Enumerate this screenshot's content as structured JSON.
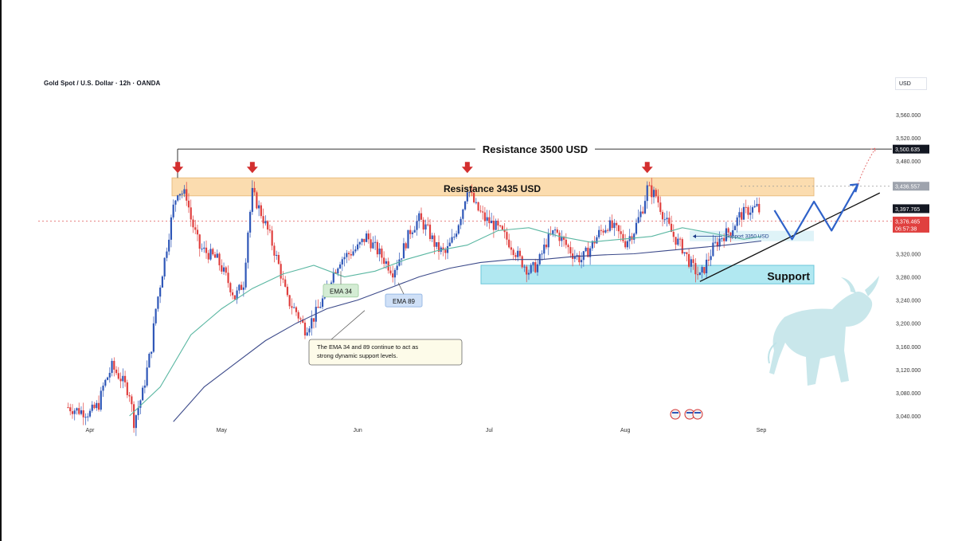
{
  "header": {
    "title": "Gold Spot / U.S. Dollar · 12h · OANDA",
    "currency": "USD"
  },
  "chart_data": {
    "type": "candlestick",
    "ylim": [
      3025,
      3600
    ],
    "y_ticks": [
      3040,
      3080,
      3120,
      3160,
      3200,
      3240,
      3280,
      3320,
      3480,
      3520,
      3560
    ],
    "y_tick_labels": [
      "3,040.000",
      "3,080.000",
      "3,120.000",
      "3,160.000",
      "3,200.000",
      "3,240.000",
      "3,280.000",
      "3,320.000",
      "3,480.000",
      "3,520.000",
      "3,560.000"
    ],
    "x_labels": [
      "Apr",
      "May",
      "Jun",
      "Jul",
      "Aug",
      "Sep"
    ],
    "x_label_dates": [
      "2025-04-01",
      "2025-05-01",
      "2025-06-01",
      "2025-07-01",
      "2025-08-01",
      "2025-09-01"
    ],
    "price_flags": [
      {
        "label": "3,500.635",
        "value": 3500.635,
        "style": "dark"
      },
      {
        "label": "3,436.557",
        "value": 3436.557,
        "style": "gray"
      },
      {
        "label": "3,397.765",
        "value": 3397.765,
        "style": "dark"
      },
      {
        "label": "3,376.465",
        "sub": "06:57:38",
        "value": 3376.465,
        "style": "red"
      }
    ],
    "close_path": [
      [
        "2025-03-27",
        3055
      ],
      [
        "2025-03-29",
        3050
      ],
      [
        "2025-04-01",
        3045
      ],
      [
        "2025-04-03",
        3060
      ],
      [
        "2025-04-04",
        3090
      ],
      [
        "2025-04-06",
        3125
      ],
      [
        "2025-04-08",
        3105
      ],
      [
        "2025-04-10",
        3080
      ],
      [
        "2025-04-11",
        3030
      ],
      [
        "2025-04-13",
        3080
      ],
      [
        "2025-04-15",
        3160
      ],
      [
        "2025-04-16",
        3225
      ],
      [
        "2025-04-18",
        3310
      ],
      [
        "2025-04-20",
        3400
      ],
      [
        "2025-04-21",
        3430
      ],
      [
        "2025-04-23",
        3420
      ],
      [
        "2025-04-24",
        3380
      ],
      [
        "2025-04-26",
        3330
      ],
      [
        "2025-04-28",
        3320
      ],
      [
        "2025-04-30",
        3310
      ],
      [
        "2025-05-02",
        3280
      ],
      [
        "2025-05-04",
        3245
      ],
      [
        "2025-05-06",
        3270
      ],
      [
        "2025-05-07",
        3360
      ],
      [
        "2025-05-08",
        3425
      ],
      [
        "2025-05-10",
        3390
      ],
      [
        "2025-05-12",
        3350
      ],
      [
        "2025-05-14",
        3300
      ],
      [
        "2025-05-16",
        3240
      ],
      [
        "2025-05-18",
        3220
      ],
      [
        "2025-05-20",
        3190
      ],
      [
        "2025-05-22",
        3210
      ],
      [
        "2025-05-24",
        3240
      ],
      [
        "2025-05-26",
        3280
      ],
      [
        "2025-05-28",
        3310
      ],
      [
        "2025-05-30",
        3320
      ],
      [
        "2025-06-01",
        3330
      ],
      [
        "2025-06-03",
        3350
      ],
      [
        "2025-06-05",
        3330
      ],
      [
        "2025-06-07",
        3310
      ],
      [
        "2025-06-09",
        3290
      ],
      [
        "2025-06-11",
        3320
      ],
      [
        "2025-06-13",
        3360
      ],
      [
        "2025-06-15",
        3380
      ],
      [
        "2025-06-17",
        3360
      ],
      [
        "2025-06-19",
        3330
      ],
      [
        "2025-06-21",
        3320
      ],
      [
        "2025-06-23",
        3350
      ],
      [
        "2025-06-25",
        3400
      ],
      [
        "2025-06-26",
        3435
      ],
      [
        "2025-06-28",
        3400
      ],
      [
        "2025-06-30",
        3380
      ],
      [
        "2025-07-02",
        3370
      ],
      [
        "2025-07-04",
        3355
      ],
      [
        "2025-07-06",
        3335
      ],
      [
        "2025-07-08",
        3310
      ],
      [
        "2025-07-10",
        3290
      ],
      [
        "2025-07-12",
        3300
      ],
      [
        "2025-07-14",
        3340
      ],
      [
        "2025-07-16",
        3360
      ],
      [
        "2025-07-18",
        3340
      ],
      [
        "2025-07-20",
        3320
      ],
      [
        "2025-07-22",
        3310
      ],
      [
        "2025-07-24",
        3330
      ],
      [
        "2025-07-26",
        3355
      ],
      [
        "2025-07-28",
        3370
      ],
      [
        "2025-07-30",
        3360
      ],
      [
        "2025-08-01",
        3340
      ],
      [
        "2025-08-03",
        3360
      ],
      [
        "2025-08-05",
        3400
      ],
      [
        "2025-08-06",
        3433
      ],
      [
        "2025-08-08",
        3420
      ],
      [
        "2025-08-10",
        3380
      ],
      [
        "2025-08-12",
        3350
      ],
      [
        "2025-08-14",
        3330
      ],
      [
        "2025-08-16",
        3300
      ],
      [
        "2025-08-18",
        3280
      ],
      [
        "2025-08-19",
        3295
      ],
      [
        "2025-08-21",
        3330
      ],
      [
        "2025-08-23",
        3350
      ],
      [
        "2025-08-25",
        3360
      ],
      [
        "2025-08-27",
        3385
      ],
      [
        "2025-08-29",
        3395
      ],
      [
        "2025-08-31",
        3400
      ],
      [
        "2025-09-01",
        3388
      ]
    ],
    "ema34": [
      [
        "2025-04-10",
        3040
      ],
      [
        "2025-04-17",
        3090
      ],
      [
        "2025-04-24",
        3180
      ],
      [
        "2025-05-01",
        3225
      ],
      [
        "2025-05-08",
        3260
      ],
      [
        "2025-05-15",
        3285
      ],
      [
        "2025-05-22",
        3300
      ],
      [
        "2025-05-29",
        3280
      ],
      [
        "2025-06-05",
        3290
      ],
      [
        "2025-06-12",
        3310
      ],
      [
        "2025-06-19",
        3325
      ],
      [
        "2025-06-26",
        3335
      ],
      [
        "2025-07-03",
        3360
      ],
      [
        "2025-07-10",
        3365
      ],
      [
        "2025-07-17",
        3350
      ],
      [
        "2025-07-24",
        3340
      ],
      [
        "2025-07-31",
        3345
      ],
      [
        "2025-08-07",
        3350
      ],
      [
        "2025-08-14",
        3365
      ],
      [
        "2025-08-21",
        3355
      ],
      [
        "2025-08-28",
        3345
      ],
      [
        "2025-09-01",
        3350
      ]
    ],
    "ema89": [
      [
        "2025-04-20",
        3030
      ],
      [
        "2025-04-27",
        3090
      ],
      [
        "2025-05-04",
        3130
      ],
      [
        "2025-05-11",
        3170
      ],
      [
        "2025-05-18",
        3200
      ],
      [
        "2025-05-25",
        3225
      ],
      [
        "2025-06-01",
        3240
      ],
      [
        "2025-06-08",
        3260
      ],
      [
        "2025-06-15",
        3280
      ],
      [
        "2025-06-22",
        3295
      ],
      [
        "2025-06-29",
        3305
      ],
      [
        "2025-07-06",
        3310
      ],
      [
        "2025-07-13",
        3310
      ],
      [
        "2025-07-20",
        3315
      ],
      [
        "2025-07-27",
        3318
      ],
      [
        "2025-08-03",
        3320
      ],
      [
        "2025-08-10",
        3325
      ],
      [
        "2025-08-17",
        3330
      ],
      [
        "2025-08-24",
        3335
      ],
      [
        "2025-09-01",
        3342
      ]
    ],
    "levels": {
      "resistance_3500": {
        "value": 3500.635,
        "label": "Resistance 3500 USD"
      },
      "resistance_band": {
        "low": 3420,
        "high": 3451,
        "label": "Resistance 3435 USD"
      },
      "support_band": {
        "low": 3268,
        "high": 3300,
        "label": "Support"
      },
      "support_3350": {
        "value": 3350,
        "label": "Support 3350 USD"
      }
    },
    "annotations": {
      "ema34_label": "EMA 34",
      "ema89_label": "EMA 89",
      "note": "The EMA 34 and 89 continue to act as strong dynamic support levels."
    },
    "arrows_down_dates": [
      "2025-04-21",
      "2025-05-08",
      "2025-06-26",
      "2025-08-06"
    ],
    "trendline": [
      [
        "2025-08-18",
        3272
      ],
      [
        "2025-09-28",
        3425
      ]
    ],
    "projection": [
      [
        "2025-09-04",
        3395
      ],
      [
        "2025-09-08",
        3345
      ],
      [
        "2025-09-13",
        3410
      ],
      [
        "2025-09-17",
        3360
      ],
      [
        "2025-09-23",
        3440
      ]
    ],
    "projection_dotted": [
      [
        "2025-09-23",
        3440
      ],
      [
        "2025-09-27",
        3502
      ]
    ]
  }
}
